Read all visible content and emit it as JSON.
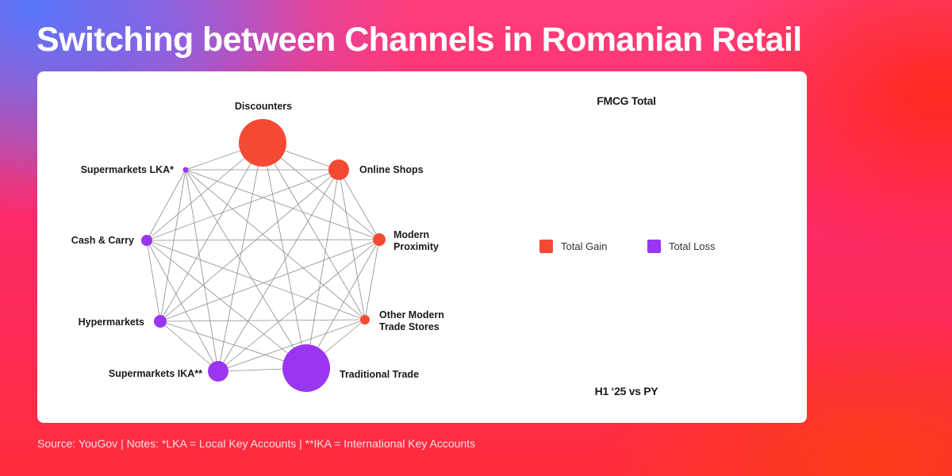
{
  "title": "Switching between Channels in Romanian Retail",
  "panel": {
    "title": "FMCG Total",
    "footer": "H1 ‘25 vs PY"
  },
  "legend": {
    "gain_label": "Total Gain",
    "loss_label": "Total Loss"
  },
  "colors": {
    "gain": "#f44a33",
    "loss": "#9a36f2",
    "edge": "#8c8c8c"
  },
  "nodes": [
    {
      "id": "discounters",
      "label": [
        "Discounters"
      ],
      "status": "gain"
    },
    {
      "id": "online-shops",
      "label": [
        "Online Shops"
      ],
      "status": "gain"
    },
    {
      "id": "modern-proximity",
      "label": [
        "Modern",
        "Proximity"
      ],
      "status": "gain"
    },
    {
      "id": "other-modern-trade-stores",
      "label": [
        "Other Modern",
        "Trade Stores"
      ],
      "status": "gain"
    },
    {
      "id": "traditional-trade",
      "label": [
        "Traditional Trade"
      ],
      "status": "loss"
    },
    {
      "id": "supermarkets-ika",
      "label": [
        "Supermarkets IKA**"
      ],
      "status": "loss"
    },
    {
      "id": "hypermarkets",
      "label": [
        "Hypermarkets"
      ],
      "status": "loss"
    },
    {
      "id": "cash-and-carry",
      "label": [
        "Cash & Carry"
      ],
      "status": "loss"
    },
    {
      "id": "supermarkets-lka",
      "label": [
        "Supermarkets LKA*"
      ],
      "status": "loss"
    }
  ],
  "footnote": "Source: YouGov  |  Notes: *LKA = Local Key Accounts | **IKA = International Key Accounts"
}
